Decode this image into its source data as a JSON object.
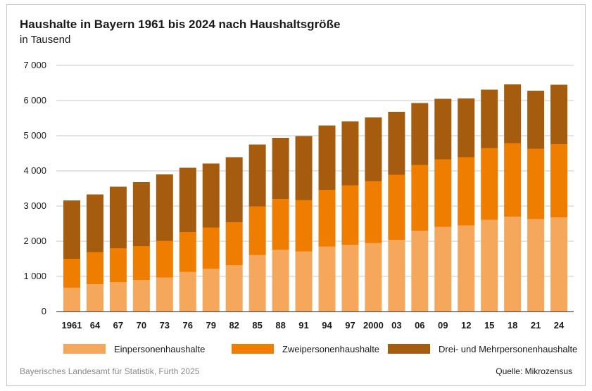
{
  "chart_data": {
    "type": "bar",
    "stacked": true,
    "title": "Haushalte in Bayern 1961 bis 2024 nach Haushaltsgröße",
    "subtitle": "in Tausend",
    "xlabel": "",
    "ylabel": "",
    "ylim": [
      0,
      7000
    ],
    "yticks": [
      0,
      1000,
      2000,
      3000,
      4000,
      5000,
      6000,
      7000
    ],
    "ytick_labels": [
      "0",
      "1 000",
      "2 000",
      "3 000",
      "4 000",
      "5 000",
      "6 000",
      "7 000"
    ],
    "grid": true,
    "legend_position": "bottom",
    "categories": [
      "1961",
      "64",
      "67",
      "70",
      "73",
      "76",
      "79",
      "82",
      "85",
      "88",
      "91",
      "94",
      "97",
      "2000",
      "03",
      "06",
      "09",
      "12",
      "15",
      "18",
      "21",
      "24"
    ],
    "series": [
      {
        "name": "Einpersonenhaushalte",
        "color": "#f5a85c",
        "values": [
          680,
          780,
          840,
          900,
          970,
          1130,
          1220,
          1320,
          1610,
          1760,
          1710,
          1850,
          1900,
          1950,
          2040,
          2300,
          2410,
          2450,
          2610,
          2700,
          2630,
          2680
        ]
      },
      {
        "name": "Zweipersonenhaushalte",
        "color": "#ef7d00",
        "values": [
          820,
          910,
          960,
          960,
          1040,
          1130,
          1170,
          1220,
          1380,
          1440,
          1460,
          1610,
          1690,
          1760,
          1850,
          1870,
          1920,
          1940,
          2040,
          2090,
          2000,
          2080
        ]
      },
      {
        "name": "Drei- und Mehrpersonenhaushalte",
        "color": "#a65c0f",
        "values": [
          1660,
          1640,
          1750,
          1820,
          1890,
          1830,
          1820,
          1850,
          1760,
          1740,
          1820,
          1830,
          1820,
          1810,
          1790,
          1760,
          1720,
          1670,
          1660,
          1670,
          1650,
          1690
        ]
      }
    ]
  },
  "footer": {
    "source_left": "Bayerisches Landesamt für Statistik, Fürth 2025",
    "source_right": "Quelle: Mikrozensus"
  }
}
